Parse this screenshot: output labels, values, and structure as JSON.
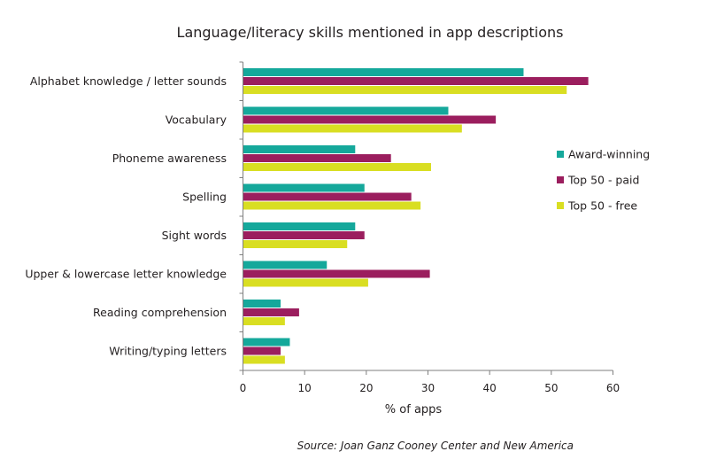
{
  "chart_data": {
    "type": "bar",
    "orientation": "horizontal",
    "title": "Language/literacy skills mentioned in app descriptions",
    "xlabel": "% of apps",
    "ylabel": "",
    "xlim": [
      0,
      60
    ],
    "xticks": [
      "0",
      "10",
      "20",
      "30",
      "40",
      "50",
      "60"
    ],
    "grid": false,
    "legend_position": "right",
    "categories": [
      "Alphabet knowledge / letter sounds",
      "Vocabulary",
      "Phoneme awareness",
      "Spelling",
      "Sight words",
      "Upper & lowercase letter knowledge",
      "Reading comprehension",
      "Writing/typing letters"
    ],
    "series": [
      {
        "name": "Award-winning",
        "color": "#15a89b",
        "values": [
          45.5,
          33.3,
          18.2,
          19.7,
          18.2,
          13.6,
          6.1,
          7.6
        ]
      },
      {
        "name": "Top 50 - paid",
        "color": "#9b1e5e",
        "values": [
          56,
          41,
          24,
          27.3,
          19.7,
          30.3,
          9.1,
          6.1
        ]
      },
      {
        "name": "Top 50 - free",
        "color": "#d9de22",
        "values": [
          52.5,
          35.5,
          30.5,
          28.8,
          16.9,
          20.3,
          6.8,
          6.8
        ]
      }
    ],
    "source": "Source: Joan Ganz Cooney Center and New America"
  }
}
